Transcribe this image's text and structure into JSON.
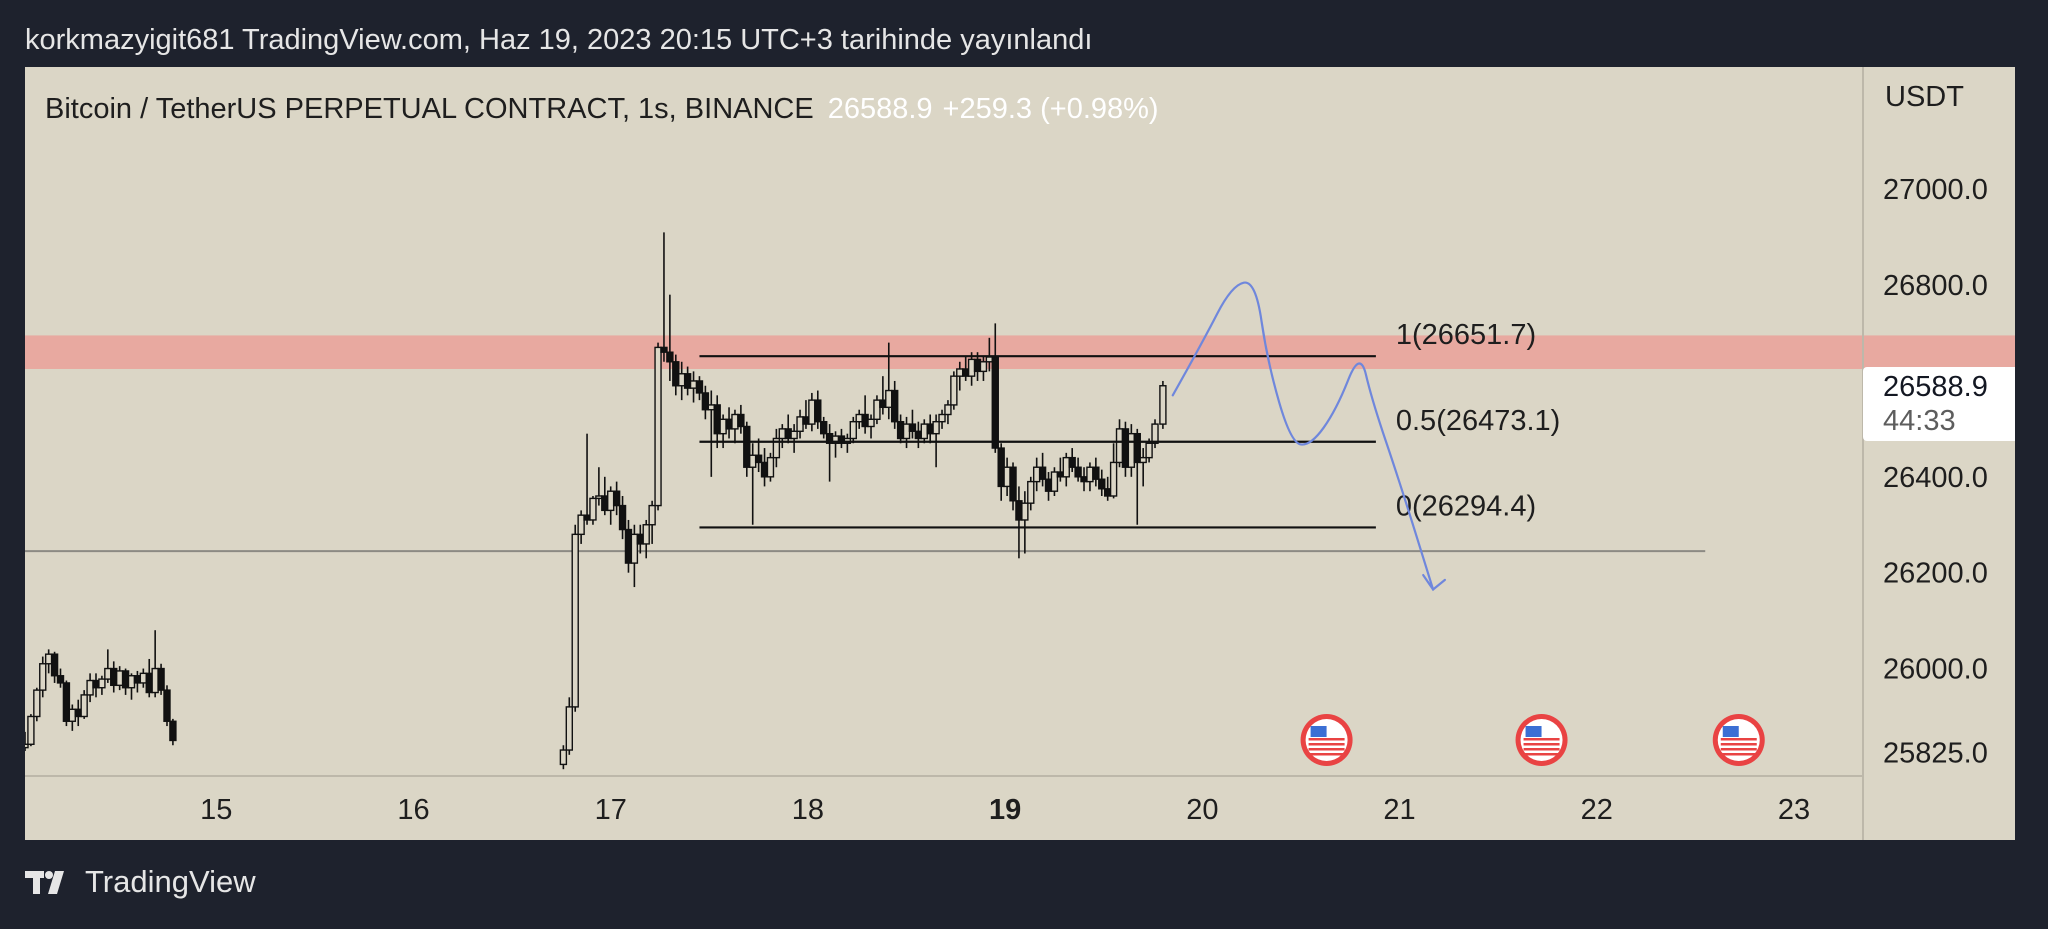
{
  "header": {
    "published": "korkmazyigit681 TradingView.com, Haz 19, 2023 20:15 UTC+3 tarihinde yayınlandı"
  },
  "legend": {
    "symbol": "Bitcoin / TetherUS PERPETUAL CONTRACT, 1s, BINANCE",
    "last": "26588.9",
    "change": "+259.3 (+0.98%)"
  },
  "axis": {
    "currency": "USDT",
    "last_price": "26588.9",
    "countdown": "44:33"
  },
  "footer": {
    "brand": "TradingView"
  },
  "colors": {
    "background": "#dbd6c6",
    "frame": "#1e222d",
    "resistance_zone": "#e8a9a0",
    "drawing": "#6f87dc",
    "candle": "#111111"
  },
  "icons": {
    "event_flag": "us-flag-icon",
    "logo": "tradingview-logo-icon"
  },
  "chart_data": {
    "type": "candlestick",
    "x_ticks": [
      {
        "label": "15",
        "x": 15.0,
        "bold": false
      },
      {
        "label": "16",
        "x": 16.0,
        "bold": false
      },
      {
        "label": "17",
        "x": 17.0,
        "bold": false
      },
      {
        "label": "18",
        "x": 18.0,
        "bold": false
      },
      {
        "label": "19",
        "x": 19.0,
        "bold": true
      },
      {
        "label": "20",
        "x": 20.0,
        "bold": false
      },
      {
        "label": "21",
        "x": 21.0,
        "bold": false
      },
      {
        "label": "22",
        "x": 22.0,
        "bold": false
      },
      {
        "label": "23",
        "x": 23.0,
        "bold": false
      }
    ],
    "y_ticks": [
      {
        "label": "27000.0",
        "y": 27000
      },
      {
        "label": "26800.0",
        "y": 26800
      },
      {
        "label": "26400.0",
        "y": 26400
      },
      {
        "label": "26200.0",
        "y": 26200
      },
      {
        "label": "26000.0",
        "y": 26000
      },
      {
        "label": "25825.0",
        "y": 25825
      }
    ],
    "xlim": [
      14.03,
      23.35
    ],
    "ylim": [
      25780,
      27255
    ],
    "resistance_zone": [
      26625,
      26695
    ],
    "horizontal_line": 26245,
    "fib_levels": [
      {
        "label": "1(26651.7)",
        "value": 26651.7
      },
      {
        "label": "0.5(26473.1)",
        "value": 26473.1
      },
      {
        "label": "0(26294.4)",
        "value": 26294.4
      }
    ],
    "fib_range": [
      17.45,
      20.88
    ],
    "event_flags": [
      20.63,
      21.72,
      22.72
    ],
    "projection_path": [
      [
        19.85,
        26570
      ],
      [
        20.0,
        26680
      ],
      [
        20.15,
        26800
      ],
      [
        20.27,
        26810
      ],
      [
        20.33,
        26640
      ],
      [
        20.45,
        26470
      ],
      [
        20.55,
        26465
      ],
      [
        20.68,
        26540
      ],
      [
        20.8,
        26665
      ],
      [
        20.86,
        26560
      ],
      [
        21.0,
        26390
      ],
      [
        21.17,
        26165
      ]
    ],
    "arrow_head": [
      [
        21.12,
        26195
      ],
      [
        21.17,
        26165
      ],
      [
        21.23,
        26185
      ]
    ],
    "candles": [
      [
        14.03,
        25835,
        25868,
        25828,
        25842
      ],
      [
        14.06,
        25842,
        25905,
        25838,
        25900
      ],
      [
        14.09,
        25900,
        25960,
        25890,
        25955
      ],
      [
        14.12,
        25955,
        26025,
        25940,
        26010
      ],
      [
        14.15,
        26010,
        26040,
        25990,
        26030
      ],
      [
        14.18,
        26030,
        26035,
        25970,
        25985
      ],
      [
        14.21,
        25985,
        26000,
        25960,
        25970
      ],
      [
        14.24,
        25970,
        25975,
        25880,
        25890
      ],
      [
        14.27,
        25890,
        25925,
        25870,
        25915
      ],
      [
        14.3,
        25915,
        25935,
        25880,
        25900
      ],
      [
        14.33,
        25900,
        25955,
        25895,
        25945
      ],
      [
        14.36,
        25945,
        25990,
        25930,
        25975
      ],
      [
        14.39,
        25975,
        25990,
        25940,
        25960
      ],
      [
        14.42,
        25960,
        25985,
        25945,
        25978
      ],
      [
        14.45,
        25978,
        26040,
        25970,
        26000
      ],
      [
        14.48,
        26000,
        26015,
        25950,
        25965
      ],
      [
        14.51,
        25965,
        26005,
        25955,
        25995
      ],
      [
        14.54,
        25995,
        26000,
        25945,
        25960
      ],
      [
        14.57,
        25960,
        25990,
        25935,
        25985
      ],
      [
        14.6,
        25985,
        25995,
        25950,
        25970
      ],
      [
        14.63,
        25970,
        26000,
        25960,
        25990
      ],
      [
        14.66,
        25990,
        26020,
        25940,
        25950
      ],
      [
        14.69,
        25950,
        26080,
        25940,
        26000
      ],
      [
        14.72,
        26000,
        26010,
        25945,
        25955
      ],
      [
        14.75,
        25955,
        25965,
        25880,
        25890
      ],
      [
        14.78,
        25890,
        25895,
        25840,
        25850
      ],
      [
        16.76,
        25800,
        25840,
        25790,
        25830
      ],
      [
        16.79,
        25830,
        25940,
        25820,
        25920
      ],
      [
        16.82,
        25920,
        26300,
        25910,
        26280
      ],
      [
        16.85,
        26280,
        26330,
        26260,
        26320
      ],
      [
        16.88,
        26320,
        26490,
        26300,
        26310
      ],
      [
        16.91,
        26310,
        26360,
        26300,
        26355
      ],
      [
        16.94,
        26355,
        26420,
        26340,
        26360
      ],
      [
        16.97,
        26360,
        26400,
        26320,
        26330
      ],
      [
        17.0,
        26330,
        26380,
        26300,
        26370
      ],
      [
        17.03,
        26370,
        26390,
        26320,
        26340
      ],
      [
        17.06,
        26340,
        26360,
        26270,
        26290
      ],
      [
        17.09,
        26290,
        26310,
        26200,
        26220
      ],
      [
        17.12,
        26220,
        26300,
        26170,
        26280
      ],
      [
        17.15,
        26280,
        26300,
        26240,
        26260
      ],
      [
        17.18,
        26260,
        26310,
        26230,
        26300
      ],
      [
        17.21,
        26300,
        26350,
        26260,
        26340
      ],
      [
        17.24,
        26340,
        26680,
        26330,
        26670
      ],
      [
        17.27,
        26670,
        26910,
        26640,
        26660
      ],
      [
        17.3,
        26660,
        26780,
        26600,
        26640
      ],
      [
        17.33,
        26640,
        26655,
        26570,
        26590
      ],
      [
        17.36,
        26590,
        26640,
        26560,
        26615
      ],
      [
        17.39,
        26615,
        26630,
        26570,
        26585
      ],
      [
        17.42,
        26585,
        26620,
        26555,
        26600
      ],
      [
        17.45,
        26600,
        26610,
        26560,
        26575
      ],
      [
        17.48,
        26575,
        26590,
        26520,
        26540
      ],
      [
        17.51,
        26540,
        26580,
        26400,
        26550
      ],
      [
        17.54,
        26550,
        26570,
        26460,
        26490
      ],
      [
        17.57,
        26490,
        26530,
        26460,
        26520
      ],
      [
        17.6,
        26520,
        26545,
        26480,
        26500
      ],
      [
        17.63,
        26500,
        26540,
        26470,
        26530
      ],
      [
        17.66,
        26530,
        26550,
        26490,
        26505
      ],
      [
        17.69,
        26505,
        26515,
        26400,
        26420
      ],
      [
        17.72,
        26420,
        26470,
        26300,
        26445
      ],
      [
        17.75,
        26445,
        26480,
        26410,
        26430
      ],
      [
        17.78,
        26430,
        26460,
        26380,
        26400
      ],
      [
        17.81,
        26400,
        26450,
        26390,
        26440
      ],
      [
        17.84,
        26440,
        26500,
        26420,
        26480
      ],
      [
        17.87,
        26480,
        26510,
        26460,
        26500
      ],
      [
        17.9,
        26500,
        26530,
        26470,
        26480
      ],
      [
        17.93,
        26480,
        26510,
        26450,
        26495
      ],
      [
        17.96,
        26495,
        26540,
        26480,
        26525
      ],
      [
        17.99,
        26525,
        26560,
        26500,
        26510
      ],
      [
        18.02,
        26510,
        26575,
        26495,
        26560
      ],
      [
        18.05,
        26560,
        26580,
        26500,
        26515
      ],
      [
        18.08,
        26515,
        26525,
        26480,
        26490
      ],
      [
        18.11,
        26490,
        26510,
        26390,
        26470
      ],
      [
        18.14,
        26470,
        26495,
        26440,
        26485
      ],
      [
        18.17,
        26485,
        26500,
        26460,
        26470
      ],
      [
        18.2,
        26470,
        26490,
        26450,
        26480
      ],
      [
        18.23,
        26480,
        26525,
        26470,
        26515
      ],
      [
        18.26,
        26515,
        26540,
        26500,
        26530
      ],
      [
        18.29,
        26530,
        26570,
        26490,
        26505
      ],
      [
        18.32,
        26505,
        26530,
        26480,
        26520
      ],
      [
        18.35,
        26520,
        26570,
        26510,
        26560
      ],
      [
        18.38,
        26560,
        26610,
        26530,
        26545
      ],
      [
        18.41,
        26545,
        26680,
        26520,
        26580
      ],
      [
        18.44,
        26580,
        26600,
        26500,
        26515
      ],
      [
        18.47,
        26515,
        26530,
        26470,
        26480
      ],
      [
        18.5,
        26480,
        26525,
        26460,
        26510
      ],
      [
        18.53,
        26510,
        26540,
        26480,
        26495
      ],
      [
        18.56,
        26495,
        26515,
        26460,
        26480
      ],
      [
        18.59,
        26480,
        26520,
        26470,
        26510
      ],
      [
        18.62,
        26510,
        26530,
        26470,
        26490
      ],
      [
        18.65,
        26490,
        26530,
        26420,
        26515
      ],
      [
        18.68,
        26515,
        26540,
        26500,
        26530
      ],
      [
        18.71,
        26530,
        26560,
        26510,
        26550
      ],
      [
        18.74,
        26550,
        26620,
        26540,
        26610
      ],
      [
        18.77,
        26610,
        26640,
        26580,
        26625
      ],
      [
        18.8,
        26625,
        26650,
        26600,
        26610
      ],
      [
        18.83,
        26610,
        26660,
        26590,
        26645
      ],
      [
        18.86,
        26645,
        26660,
        26600,
        26620
      ],
      [
        18.89,
        26620,
        26650,
        26600,
        26640
      ],
      [
        18.92,
        26640,
        26690,
        26620,
        26650
      ],
      [
        18.95,
        26650,
        26720,
        26450,
        26460
      ],
      [
        18.98,
        26460,
        26470,
        26350,
        26380
      ],
      [
        19.01,
        26380,
        26440,
        26360,
        26420
      ],
      [
        19.04,
        26420,
        26430,
        26330,
        26350
      ],
      [
        19.07,
        26350,
        26380,
        26230,
        26310
      ],
      [
        19.1,
        26310,
        26370,
        26240,
        26345
      ],
      [
        19.13,
        26345,
        26400,
        26330,
        26390
      ],
      [
        19.16,
        26390,
        26440,
        26370,
        26420
      ],
      [
        19.19,
        26420,
        26450,
        26380,
        26395
      ],
      [
        19.22,
        26395,
        26410,
        26350,
        26370
      ],
      [
        19.25,
        26370,
        26420,
        26360,
        26410
      ],
      [
        19.28,
        26410,
        26440,
        26390,
        26400
      ],
      [
        19.31,
        26400,
        26450,
        26380,
        26440
      ],
      [
        19.34,
        26440,
        26460,
        26410,
        26420
      ],
      [
        19.37,
        26420,
        26440,
        26390,
        26400
      ],
      [
        19.4,
        26400,
        26420,
        26370,
        26390
      ],
      [
        19.43,
        26390,
        26430,
        26370,
        26420
      ],
      [
        19.46,
        26420,
        26440,
        26380,
        26395
      ],
      [
        19.49,
        26395,
        26415,
        26360,
        26375
      ],
      [
        19.52,
        26375,
        26400,
        26350,
        26360
      ],
      [
        19.55,
        26360,
        26470,
        26355,
        26430
      ],
      [
        19.58,
        26430,
        26520,
        26420,
        26500
      ],
      [
        19.61,
        26500,
        26515,
        26400,
        26420
      ],
      [
        19.64,
        26420,
        26510,
        26400,
        26490
      ],
      [
        19.67,
        26490,
        26500,
        26300,
        26430
      ],
      [
        19.7,
        26430,
        26460,
        26380,
        26440
      ],
      [
        19.73,
        26440,
        26480,
        26430,
        26470
      ],
      [
        19.76,
        26470,
        26520,
        26460,
        26510
      ],
      [
        19.8,
        26510,
        26600,
        26500,
        26590
      ]
    ]
  }
}
